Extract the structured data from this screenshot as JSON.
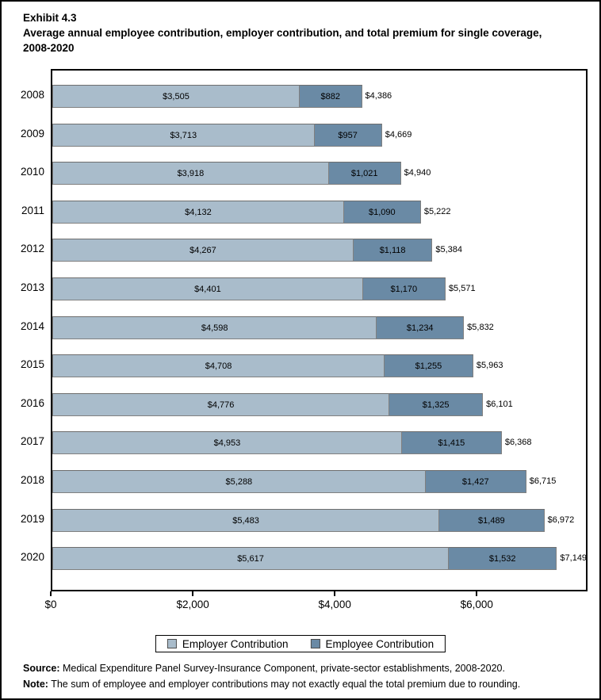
{
  "header": {
    "exhibit": "Exhibit 4.3",
    "title": "Average annual employee contribution, employer contribution, and total premium for single coverage, 2008-2020"
  },
  "chart_data": {
    "type": "bar",
    "orientation": "horizontal",
    "stacked": true,
    "grid": false,
    "legend_position": "bottom",
    "categories": [
      "2008",
      "2009",
      "2010",
      "2011",
      "2012",
      "2013",
      "2014",
      "2015",
      "2016",
      "2017",
      "2018",
      "2019",
      "2020"
    ],
    "series": [
      {
        "name": "Employer Contribution",
        "color": "#A9BCCB",
        "values": [
          3505,
          3713,
          3918,
          4132,
          4267,
          4401,
          4598,
          4708,
          4776,
          4953,
          5288,
          5483,
          5617
        ]
      },
      {
        "name": "Employee Contribution",
        "color": "#6A8AA5",
        "values": [
          882,
          957,
          1021,
          1090,
          1118,
          1170,
          1234,
          1255,
          1325,
          1415,
          1427,
          1489,
          1532
        ]
      }
    ],
    "totals": [
      4386,
      4669,
      4940,
      5222,
      5384,
      5571,
      5832,
      5963,
      6101,
      6368,
      6715,
      6972,
      7149
    ],
    "value_labels": {
      "employer": [
        "$3,505",
        "$3,713",
        "$3,918",
        "$4,132",
        "$4,267",
        "$4,401",
        "$4,598",
        "$4,708",
        "$4,776",
        "$4,953",
        "$5,288",
        "$5,483",
        "$5,617"
      ],
      "employee": [
        "$882",
        "$957",
        "$1,021",
        "$1,090",
        "$1,118",
        "$1,170",
        "$1,234",
        "$1,255",
        "$1,325",
        "$1,415",
        "$1,427",
        "$1,489",
        "$1,532"
      ],
      "total": [
        "$4,386",
        "$4,669",
        "$4,940",
        "$5,222",
        "$5,384",
        "$5,571",
        "$5,832",
        "$5,963",
        "$6,101",
        "$6,368",
        "$6,715",
        "$6,972",
        "$7,149"
      ]
    },
    "xlabel": "",
    "ylabel": "",
    "xlim": [
      0,
      7560
    ],
    "xticks": [
      {
        "value": 0,
        "label": "$0"
      },
      {
        "value": 2000,
        "label": "$2,000"
      },
      {
        "value": 4000,
        "label": "$4,000"
      },
      {
        "value": 6000,
        "label": "$6,000"
      }
    ]
  },
  "legend": {
    "items": [
      {
        "label": "Employer Contribution",
        "color": "#A9BCCB"
      },
      {
        "label": "Employee Contribution",
        "color": "#6A8AA5"
      }
    ]
  },
  "footer": {
    "source_label": "Source:",
    "source_text": " Medical Expenditure Panel Survey-Insurance Component, private-sector establishments, 2008-2020.",
    "note_label": "Note:",
    "note_text": " The sum of employee and employer contributions may not exactly equal the total premium due to rounding."
  },
  "colors": {
    "employer_bar": "#A9BCCB",
    "employee_bar": "#6A8AA5",
    "bar_border": "#808080",
    "frame": "#000000"
  }
}
